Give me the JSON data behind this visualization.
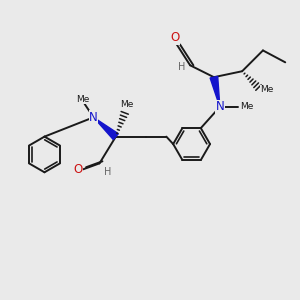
{
  "bg_color": "#eaeaea",
  "bond_color": "#1a1a1a",
  "N_color": "#1414cc",
  "O_color": "#cc1414",
  "H_color": "#666666",
  "line_width": 1.4,
  "fig_size": [
    3.0,
    3.0
  ],
  "dpi": 100,
  "xlim": [
    0,
    10
  ],
  "ylim": [
    0,
    10
  ]
}
